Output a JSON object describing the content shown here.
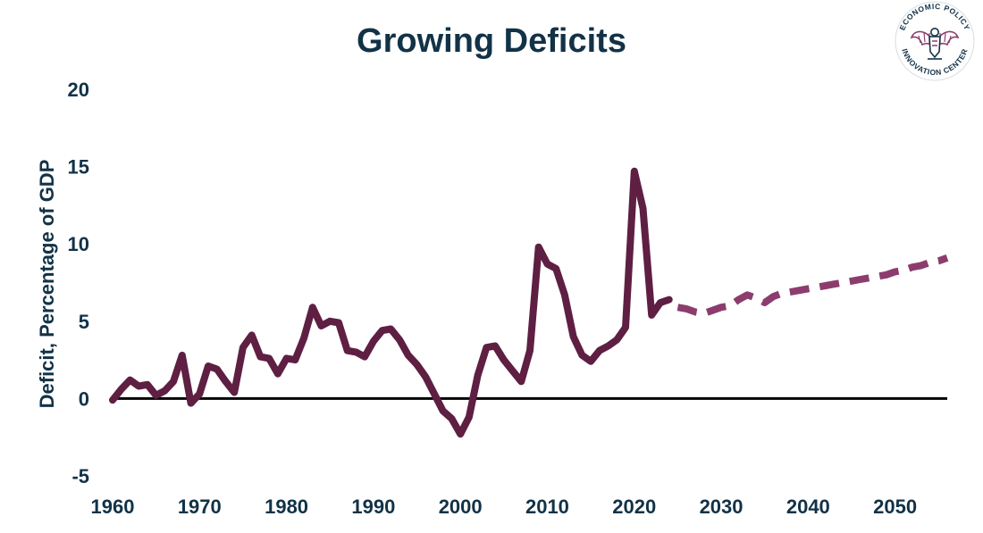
{
  "chart_data": {
    "type": "line",
    "title": "Growing Deficits",
    "xlabel": "",
    "ylabel": "Deficit, Percentage of GDP",
    "xlim": [
      1960,
      2056
    ],
    "ylim": [
      -5,
      20
    ],
    "xticks": [
      "1960",
      "1970",
      "1980",
      "1990",
      "2000",
      "2010",
      "2020",
      "2030",
      "2040",
      "2050"
    ],
    "yticks": [
      "-5",
      "0",
      "5",
      "10",
      "15",
      "20"
    ],
    "grid": false,
    "series": [
      {
        "style": "solid",
        "color": "#5e1f42",
        "x": [
          1960,
          1961,
          1962,
          1963,
          1964,
          1965,
          1966,
          1967,
          1968,
          1969,
          1970,
          1971,
          1972,
          1973,
          1974,
          1975,
          1976,
          1977,
          1978,
          1979,
          1980,
          1981,
          1982,
          1983,
          1984,
          1985,
          1986,
          1987,
          1988,
          1989,
          1990,
          1991,
          1992,
          1993,
          1994,
          1995,
          1996,
          1997,
          1998,
          1999,
          2000,
          2001,
          2002,
          2003,
          2004,
          2005,
          2006,
          2007,
          2008,
          2009,
          2010,
          2011,
          2012,
          2013,
          2014,
          2015,
          2016,
          2017,
          2018,
          2019,
          2020,
          2021,
          2022,
          2023,
          2024
        ],
        "values": [
          -0.1,
          0.6,
          1.2,
          0.8,
          0.9,
          0.2,
          0.5,
          1.1,
          2.8,
          -0.3,
          0.3,
          2.1,
          1.9,
          1.1,
          0.4,
          3.3,
          4.1,
          2.7,
          2.6,
          1.6,
          2.6,
          2.5,
          3.9,
          5.9,
          4.7,
          5.0,
          4.9,
          3.1,
          3.0,
          2.7,
          3.7,
          4.4,
          4.5,
          3.8,
          2.8,
          2.2,
          1.4,
          0.3,
          -0.8,
          -1.3,
          -2.3,
          -1.2,
          1.5,
          3.3,
          3.4,
          2.5,
          1.8,
          1.1,
          3.1,
          9.8,
          8.7,
          8.4,
          6.7,
          4.0,
          2.8,
          2.4,
          3.1,
          3.4,
          3.8,
          4.6,
          14.7,
          12.3,
          5.4,
          6.2,
          6.4
        ]
      },
      {
        "style": "dashed",
        "color": "#8c3d6e",
        "x": [
          2025,
          2026,
          2027,
          2028,
          2029,
          2030,
          2031,
          2032,
          2033,
          2034,
          2035,
          2036,
          2037,
          2038,
          2039,
          2040,
          2041,
          2042,
          2043,
          2044,
          2045,
          2046,
          2047,
          2048,
          2049,
          2050,
          2051,
          2052,
          2053,
          2054,
          2055,
          2056
        ],
        "values": [
          5.9,
          5.8,
          5.6,
          5.5,
          5.7,
          5.9,
          6.0,
          6.4,
          6.7,
          6.5,
          6.2,
          6.6,
          6.8,
          6.9,
          7.0,
          7.1,
          7.2,
          7.3,
          7.4,
          7.5,
          7.6,
          7.7,
          7.8,
          7.9,
          8.0,
          8.2,
          8.3,
          8.5,
          8.6,
          8.8,
          8.9,
          9.1
        ]
      }
    ]
  },
  "logo": {
    "top_text": "ECONOMIC POLICY",
    "bottom_text": "INNOVATION CENTER",
    "primary_color": "#123247",
    "accent_color": "#8c3d6e",
    "icon": "eagle-icon"
  }
}
